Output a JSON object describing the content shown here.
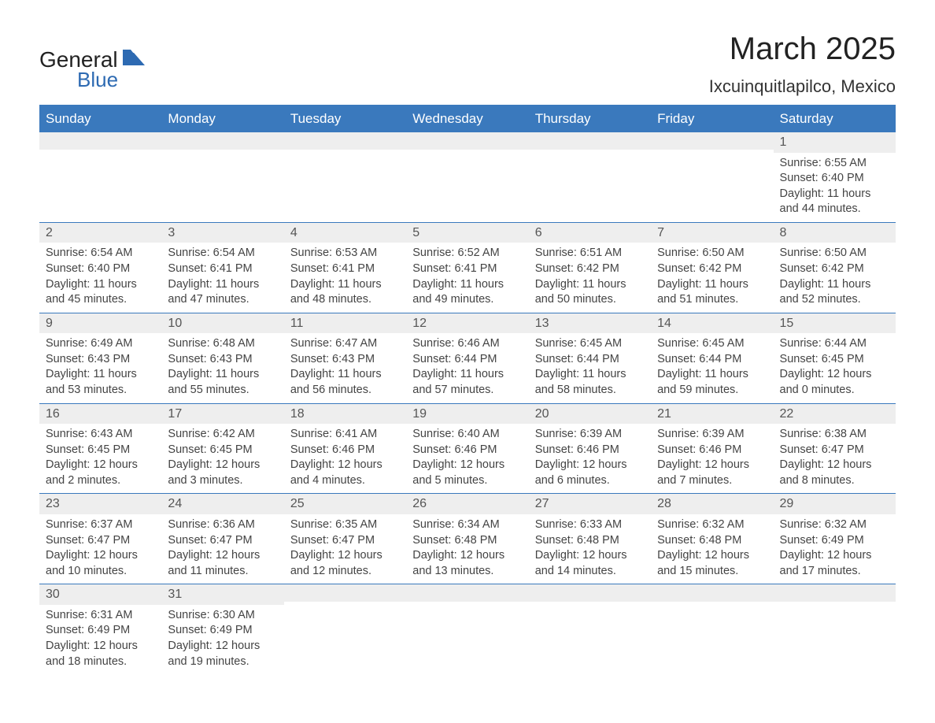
{
  "logo": {
    "word1": "General",
    "word2": "Blue"
  },
  "title": "March 2025",
  "location": "Ixcuinquitlapilco, Mexico",
  "header_bg": "#3a79bd",
  "daynum_bg": "#eeeeee",
  "days_of_week": [
    "Sunday",
    "Monday",
    "Tuesday",
    "Wednesday",
    "Thursday",
    "Friday",
    "Saturday"
  ],
  "labels": {
    "sunrise": "Sunrise:",
    "sunset": "Sunset:",
    "daylight": "Daylight:"
  },
  "weeks": [
    [
      null,
      null,
      null,
      null,
      null,
      null,
      {
        "n": "1",
        "sr": "6:55 AM",
        "ss": "6:40 PM",
        "dl": "11 hours and 44 minutes."
      }
    ],
    [
      {
        "n": "2",
        "sr": "6:54 AM",
        "ss": "6:40 PM",
        "dl": "11 hours and 45 minutes."
      },
      {
        "n": "3",
        "sr": "6:54 AM",
        "ss": "6:41 PM",
        "dl": "11 hours and 47 minutes."
      },
      {
        "n": "4",
        "sr": "6:53 AM",
        "ss": "6:41 PM",
        "dl": "11 hours and 48 minutes."
      },
      {
        "n": "5",
        "sr": "6:52 AM",
        "ss": "6:41 PM",
        "dl": "11 hours and 49 minutes."
      },
      {
        "n": "6",
        "sr": "6:51 AM",
        "ss": "6:42 PM",
        "dl": "11 hours and 50 minutes."
      },
      {
        "n": "7",
        "sr": "6:50 AM",
        "ss": "6:42 PM",
        "dl": "11 hours and 51 minutes."
      },
      {
        "n": "8",
        "sr": "6:50 AM",
        "ss": "6:42 PM",
        "dl": "11 hours and 52 minutes."
      }
    ],
    [
      {
        "n": "9",
        "sr": "6:49 AM",
        "ss": "6:43 PM",
        "dl": "11 hours and 53 minutes."
      },
      {
        "n": "10",
        "sr": "6:48 AM",
        "ss": "6:43 PM",
        "dl": "11 hours and 55 minutes."
      },
      {
        "n": "11",
        "sr": "6:47 AM",
        "ss": "6:43 PM",
        "dl": "11 hours and 56 minutes."
      },
      {
        "n": "12",
        "sr": "6:46 AM",
        "ss": "6:44 PM",
        "dl": "11 hours and 57 minutes."
      },
      {
        "n": "13",
        "sr": "6:45 AM",
        "ss": "6:44 PM",
        "dl": "11 hours and 58 minutes."
      },
      {
        "n": "14",
        "sr": "6:45 AM",
        "ss": "6:44 PM",
        "dl": "11 hours and 59 minutes."
      },
      {
        "n": "15",
        "sr": "6:44 AM",
        "ss": "6:45 PM",
        "dl": "12 hours and 0 minutes."
      }
    ],
    [
      {
        "n": "16",
        "sr": "6:43 AM",
        "ss": "6:45 PM",
        "dl": "12 hours and 2 minutes."
      },
      {
        "n": "17",
        "sr": "6:42 AM",
        "ss": "6:45 PM",
        "dl": "12 hours and 3 minutes."
      },
      {
        "n": "18",
        "sr": "6:41 AM",
        "ss": "6:46 PM",
        "dl": "12 hours and 4 minutes."
      },
      {
        "n": "19",
        "sr": "6:40 AM",
        "ss": "6:46 PM",
        "dl": "12 hours and 5 minutes."
      },
      {
        "n": "20",
        "sr": "6:39 AM",
        "ss": "6:46 PM",
        "dl": "12 hours and 6 minutes."
      },
      {
        "n": "21",
        "sr": "6:39 AM",
        "ss": "6:46 PM",
        "dl": "12 hours and 7 minutes."
      },
      {
        "n": "22",
        "sr": "6:38 AM",
        "ss": "6:47 PM",
        "dl": "12 hours and 8 minutes."
      }
    ],
    [
      {
        "n": "23",
        "sr": "6:37 AM",
        "ss": "6:47 PM",
        "dl": "12 hours and 10 minutes."
      },
      {
        "n": "24",
        "sr": "6:36 AM",
        "ss": "6:47 PM",
        "dl": "12 hours and 11 minutes."
      },
      {
        "n": "25",
        "sr": "6:35 AM",
        "ss": "6:47 PM",
        "dl": "12 hours and 12 minutes."
      },
      {
        "n": "26",
        "sr": "6:34 AM",
        "ss": "6:48 PM",
        "dl": "12 hours and 13 minutes."
      },
      {
        "n": "27",
        "sr": "6:33 AM",
        "ss": "6:48 PM",
        "dl": "12 hours and 14 minutes."
      },
      {
        "n": "28",
        "sr": "6:32 AM",
        "ss": "6:48 PM",
        "dl": "12 hours and 15 minutes."
      },
      {
        "n": "29",
        "sr": "6:32 AM",
        "ss": "6:49 PM",
        "dl": "12 hours and 17 minutes."
      }
    ],
    [
      {
        "n": "30",
        "sr": "6:31 AM",
        "ss": "6:49 PM",
        "dl": "12 hours and 18 minutes."
      },
      {
        "n": "31",
        "sr": "6:30 AM",
        "ss": "6:49 PM",
        "dl": "12 hours and 19 minutes."
      },
      null,
      null,
      null,
      null,
      null
    ]
  ]
}
